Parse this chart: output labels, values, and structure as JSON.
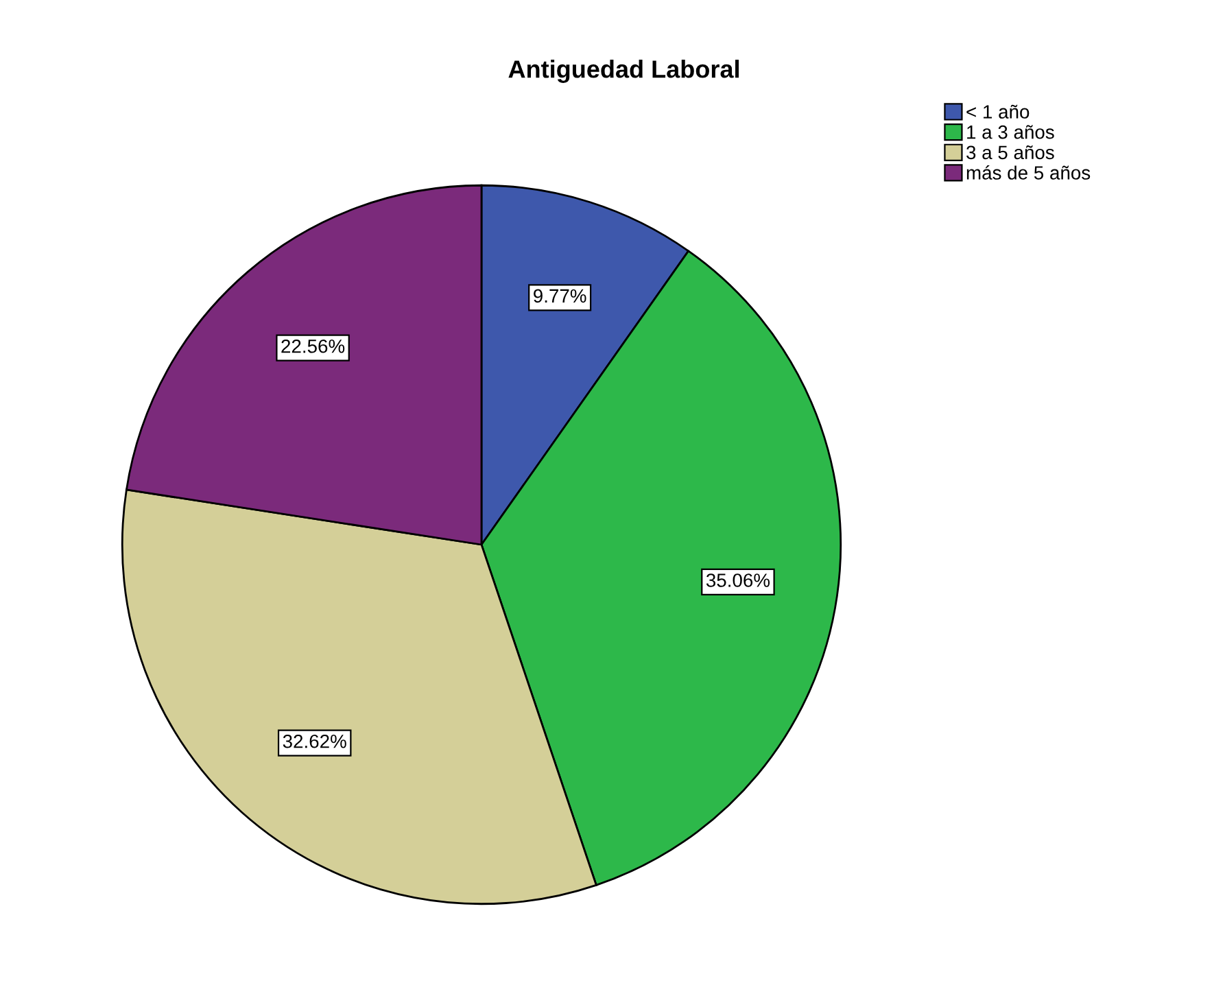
{
  "chart_data": {
    "type": "pie",
    "title": "Antiguedad Laboral",
    "categories": [
      "< 1 año",
      "1 a 3 años",
      "3 a 5 años",
      "más de 5 años"
    ],
    "values": [
      9.77,
      35.06,
      32.62,
      22.56
    ],
    "colors": [
      "#3e58ac",
      "#2db84a",
      "#d4cf98",
      "#7b2a7b"
    ],
    "value_labels": [
      "9.77%",
      "35.06%",
      "32.62%",
      "22.56%"
    ],
    "legend": "top right"
  }
}
